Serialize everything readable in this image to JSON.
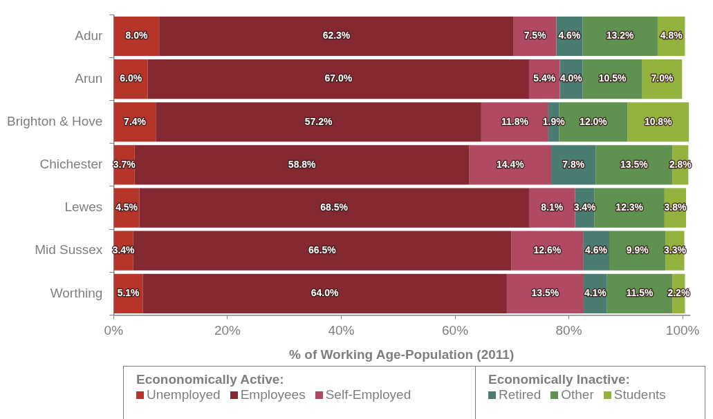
{
  "chart_data": {
    "type": "bar",
    "orientation": "horizontal",
    "stacked": true,
    "categories": [
      "Adur",
      "Arun",
      "Brighton & Hove",
      "Chichester",
      "Lewes",
      "Mid Sussex",
      "Worthing"
    ],
    "xlabel": "% of Working Age-Population (2011)",
    "xlim": [
      0,
      101.2
    ],
    "xticks": [
      {
        "value": 0,
        "label": "0%"
      },
      {
        "value": 20,
        "label": "20%"
      },
      {
        "value": 40,
        "label": "40%"
      },
      {
        "value": 60,
        "label": "60%"
      },
      {
        "value": 80,
        "label": "80%"
      },
      {
        "value": 100,
        "label": "100%"
      }
    ],
    "legend": "bottom",
    "annotations": [
      "Econonomically Active:",
      "Economically Inactive:"
    ],
    "series": [
      {
        "name": "Unemployed",
        "color": "#b5352b",
        "values": [
          8.0,
          6.0,
          7.4,
          3.7,
          4.5,
          3.4,
          5.1
        ],
        "value_labels": [
          "8.0%",
          "6.0%",
          "7.4%",
          "3.7%",
          "4.5%",
          "3.4%",
          "5.1%"
        ]
      },
      {
        "name": "Employees",
        "color": "#842832",
        "values": [
          62.3,
          67.0,
          57.2,
          58.8,
          68.5,
          66.5,
          64.0
        ],
        "value_labels": [
          "62.3%",
          "67.0%",
          "57.2%",
          "58.8%",
          "68.5%",
          "66.5%",
          "64.0%"
        ]
      },
      {
        "name": "Self-Employed",
        "color": "#b04a63",
        "values": [
          7.5,
          5.4,
          11.8,
          14.4,
          8.1,
          12.6,
          13.5
        ],
        "value_labels": [
          "7.5%",
          "5.4%",
          "11.8%",
          "14.4%",
          "8.1%",
          "12.6%",
          "13.5%"
        ]
      },
      {
        "name": "Retired",
        "color": "#4a7c72",
        "values": [
          4.6,
          4.0,
          1.9,
          7.8,
          3.4,
          4.6,
          4.1
        ],
        "value_labels": [
          "4.6%",
          "4.0%",
          "1.9%",
          "7.8%",
          "3.4%",
          "4.6%",
          "4.1%"
        ]
      },
      {
        "name": "Other",
        "color": "#5f9150",
        "values": [
          13.2,
          10.5,
          12.0,
          13.5,
          12.3,
          9.9,
          11.5
        ],
        "value_labels": [
          "13.2%",
          "10.5%",
          "12.0%",
          "13.5%",
          "12.3%",
          "9.9%",
          "11.5%"
        ]
      },
      {
        "name": "Students",
        "color": "#93b33e",
        "values": [
          4.8,
          7.0,
          10.8,
          2.8,
          3.8,
          3.3,
          2.2
        ],
        "value_labels": [
          "4.8%",
          "7.0%",
          "10.8%",
          "2.8%",
          "3.8%",
          "3.3%",
          "2.2%"
        ]
      }
    ]
  }
}
